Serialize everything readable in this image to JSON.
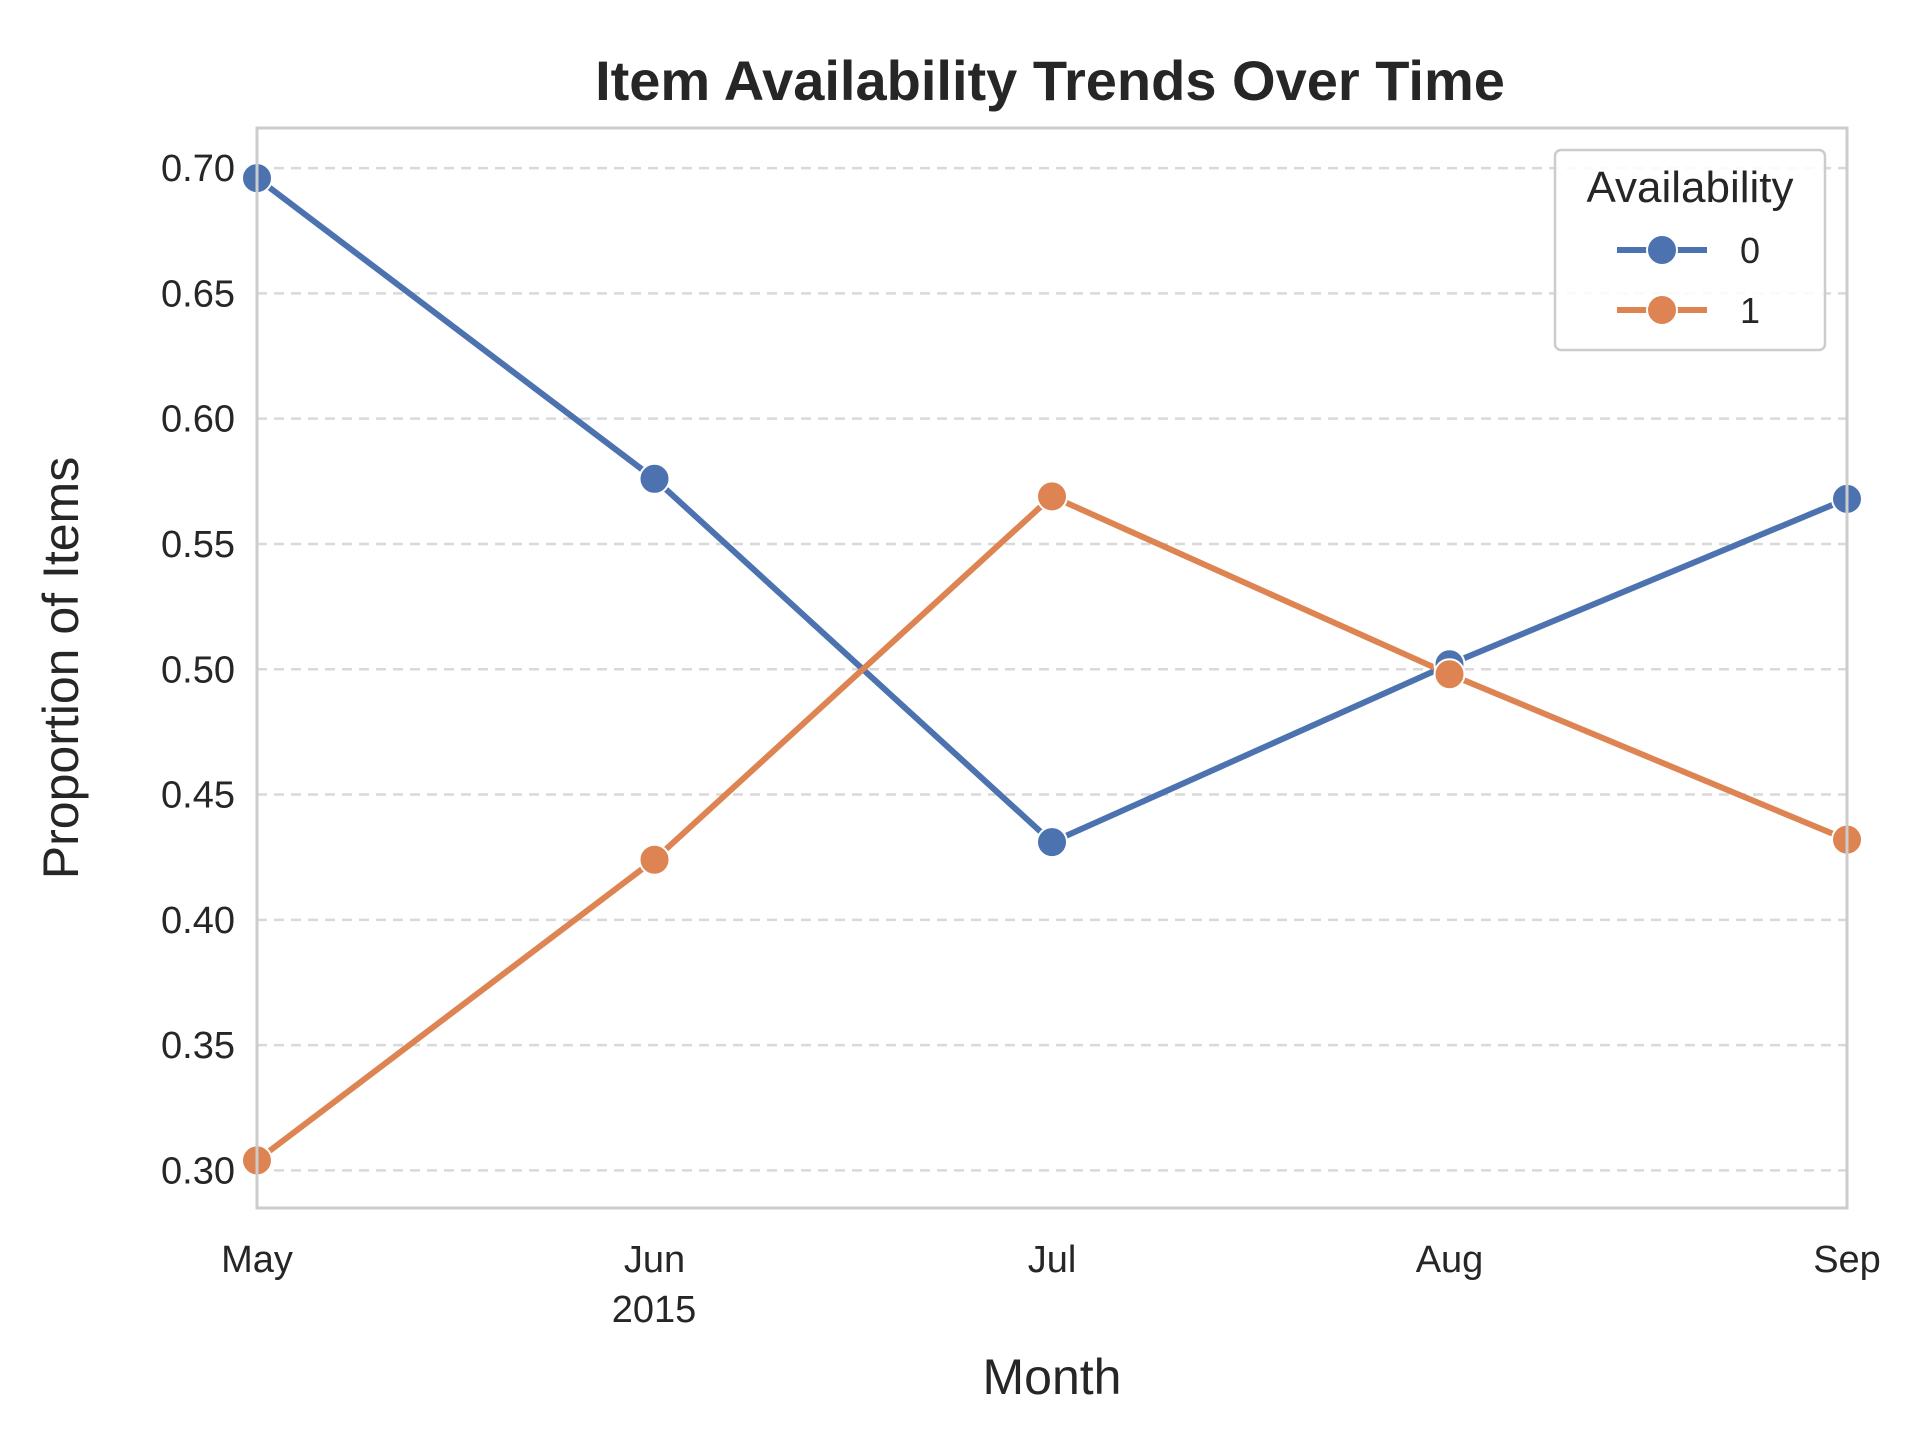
{
  "chart_data": {
    "type": "line",
    "title": "Item Availability Trends Over Time",
    "xlabel": "Month",
    "ylabel": "Proportion of Items",
    "x": [
      "2015-05",
      "2015-06",
      "2015-07",
      "2015-08",
      "2015-09"
    ],
    "x_tick_labels": [
      "May",
      "Jun",
      "Jul",
      "Aug",
      "Sep"
    ],
    "x_year_label": "2015",
    "y_ticks": [
      "0.30",
      "0.35",
      "0.40",
      "0.45",
      "0.50",
      "0.55",
      "0.60",
      "0.65",
      "0.70"
    ],
    "ylim": [
      0.285,
      0.716
    ],
    "grid": "horizontal dashed",
    "legend": {
      "title": "Availability",
      "placement": "top-right"
    },
    "series": [
      {
        "name": "0",
        "color": "#4c72b0",
        "values": [
          0.696,
          0.576,
          0.431,
          0.502,
          0.568
        ]
      },
      {
        "name": "1",
        "color": "#dd8452",
        "values": [
          0.304,
          0.424,
          0.569,
          0.498,
          0.432
        ]
      }
    ]
  }
}
